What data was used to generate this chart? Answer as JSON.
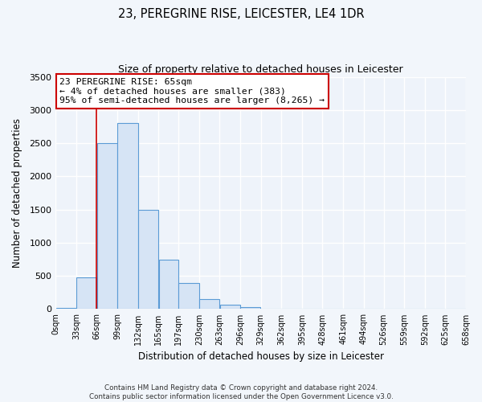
{
  "title": "23, PEREGRINE RISE, LEICESTER, LE4 1DR",
  "subtitle": "Size of property relative to detached houses in Leicester",
  "xlabel": "Distribution of detached houses by size in Leicester",
  "ylabel": "Number of detached properties",
  "bar_color": "#d6e4f5",
  "bar_edge_color": "#5b9bd5",
  "bar_left_edges": [
    0,
    33,
    66,
    99,
    132,
    165,
    197,
    230,
    263,
    296,
    329,
    362,
    395,
    428,
    461,
    494,
    526,
    559,
    592,
    625
  ],
  "bar_widths": [
    33,
    33,
    33,
    33,
    33,
    32,
    33,
    33,
    33,
    33,
    33,
    33,
    33,
    33,
    33,
    32,
    33,
    33,
    33,
    33
  ],
  "bar_heights": [
    20,
    480,
    2500,
    2800,
    1500,
    750,
    390,
    148,
    68,
    28,
    0,
    0,
    0,
    0,
    0,
    0,
    0,
    0,
    0,
    0
  ],
  "tick_labels": [
    "0sqm",
    "33sqm",
    "66sqm",
    "99sqm",
    "132sqm",
    "165sqm",
    "197sqm",
    "230sqm",
    "263sqm",
    "296sqm",
    "329sqm",
    "362sqm",
    "395sqm",
    "428sqm",
    "461sqm",
    "494sqm",
    "526sqm",
    "559sqm",
    "592sqm",
    "625sqm",
    "658sqm"
  ],
  "ylim": [
    0,
    3500
  ],
  "yticks": [
    0,
    500,
    1000,
    1500,
    2000,
    2500,
    3000,
    3500
  ],
  "property_line_x": 65,
  "annotation_line1": "23 PEREGRINE RISE: 65sqm",
  "annotation_line2": "← 4% of detached houses are smaller (383)",
  "annotation_line3": "95% of semi-detached houses are larger (8,265) →",
  "annotation_box_color": "#ffffff",
  "annotation_box_edge_color": "#cc0000",
  "footer_line1": "Contains HM Land Registry data © Crown copyright and database right 2024.",
  "footer_line2": "Contains public sector information licensed under the Open Government Licence v3.0.",
  "background_color": "#f2f6fb",
  "plot_bg_color": "#eef3fa",
  "grid_color": "#ffffff"
}
